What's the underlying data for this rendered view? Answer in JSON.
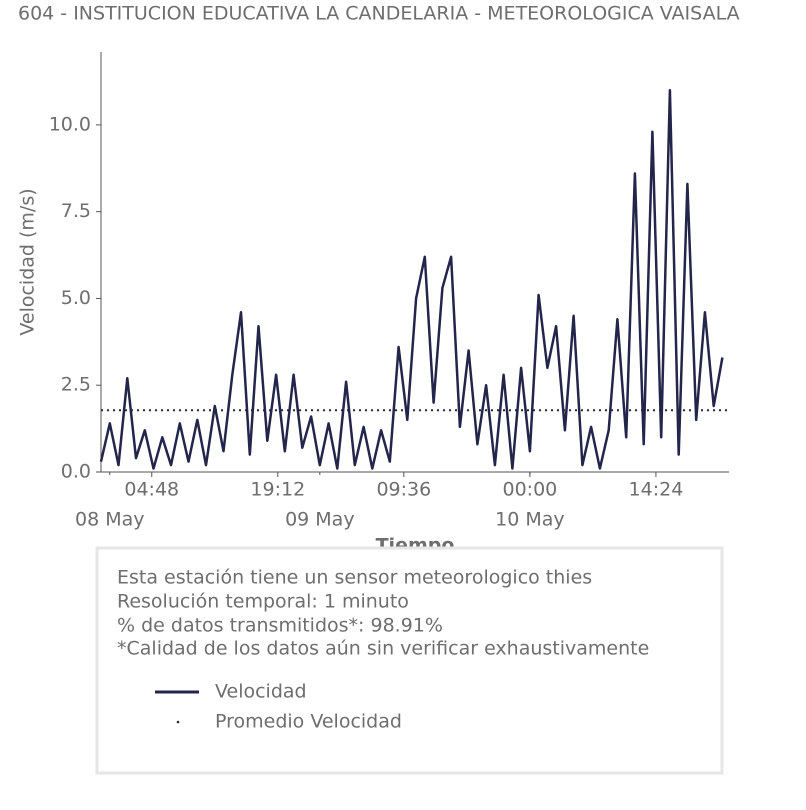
{
  "chart_data": {
    "type": "line",
    "title": "604 - INSTITUCION EDUCATIVA LA CANDELARIA - METEOROLOGICA VAISALA",
    "x_label": "Tiempo",
    "y_label": "Velocidad (m/s)",
    "xlim": [
      "05-07 23:00",
      "05-10 22:45"
    ],
    "ylim": [
      0,
      12.1
    ],
    "yticks": [
      {
        "value": 0,
        "label": "0.0"
      },
      {
        "value": 2.5,
        "label": "2.5"
      },
      {
        "value": 5,
        "label": "5.0"
      },
      {
        "value": 7.5,
        "label": "7.5"
      },
      {
        "value": 10,
        "label": "10.0"
      }
    ],
    "xticks": [
      {
        "value": "05-08 04:48",
        "label": "04:48"
      },
      {
        "value": "05-08 19:12",
        "label": "19:12"
      },
      {
        "value": "05-09 09:36",
        "label": "09:36"
      },
      {
        "value": "05-10 00:00",
        "label": "00:00"
      },
      {
        "value": "05-10 14:24",
        "label": "14:24"
      }
    ],
    "xticks_minor": [
      {
        "value": "05-08 00:00",
        "label": "08 May"
      },
      {
        "value": "05-09 00:00",
        "label": "09 May"
      },
      {
        "value": "05-10 00:00",
        "label": "10 May"
      }
    ],
    "x": [
      "05-07 23:00",
      "05-08 00:00",
      "05-08 01:00",
      "05-08 02:00",
      "05-08 03:00",
      "05-08 04:00",
      "05-08 05:00",
      "05-08 06:00",
      "05-08 07:00",
      "05-08 08:00",
      "05-08 09:00",
      "05-08 10:00",
      "05-08 11:00",
      "05-08 12:00",
      "05-08 13:00",
      "05-08 14:00",
      "05-08 15:00",
      "05-08 16:00",
      "05-08 17:00",
      "05-08 18:00",
      "05-08 19:00",
      "05-08 20:00",
      "05-08 21:00",
      "05-08 22:00",
      "05-08 23:00",
      "05-09 00:00",
      "05-09 01:00",
      "05-09 02:00",
      "05-09 03:00",
      "05-09 04:00",
      "05-09 05:00",
      "05-09 06:00",
      "05-09 07:00",
      "05-09 08:00",
      "05-09 09:00",
      "05-09 10:00",
      "05-09 11:00",
      "05-09 12:00",
      "05-09 13:00",
      "05-09 14:00",
      "05-09 15:00",
      "05-09 16:00",
      "05-09 17:00",
      "05-09 18:00",
      "05-09 19:00",
      "05-09 20:00",
      "05-09 21:00",
      "05-09 22:00",
      "05-09 23:00",
      "05-10 00:00",
      "05-10 01:00",
      "05-10 02:00",
      "05-10 03:00",
      "05-10 04:00",
      "05-10 05:00",
      "05-10 06:00",
      "05-10 07:00",
      "05-10 08:00",
      "05-10 09:00",
      "05-10 10:00",
      "05-10 11:00",
      "05-10 12:00",
      "05-10 13:00",
      "05-10 14:00",
      "05-10 15:00",
      "05-10 16:00",
      "05-10 17:00",
      "05-10 18:00",
      "05-10 19:00",
      "05-10 20:00",
      "05-10 21:00",
      "05-10 22:00"
    ],
    "series": [
      {
        "name": "Velocidad",
        "color": "#23254a",
        "values": [
          0.3,
          1.4,
          0.2,
          2.7,
          0.4,
          1.2,
          0.1,
          1.0,
          0.2,
          1.4,
          0.3,
          1.5,
          0.2,
          1.9,
          0.6,
          2.8,
          4.6,
          0.5,
          4.2,
          0.9,
          2.8,
          0.6,
          2.8,
          0.7,
          1.6,
          0.2,
          1.4,
          0.1,
          2.6,
          0.2,
          1.3,
          0.1,
          1.2,
          0.3,
          3.6,
          1.5,
          5.0,
          6.2,
          2.0,
          5.3,
          6.2,
          1.3,
          3.5,
          0.8,
          2.5,
          0.2,
          2.8,
          0.1,
          3.0,
          0.6,
          5.1,
          3.0,
          4.2,
          1.2,
          4.5,
          0.2,
          1.3,
          0.1,
          1.2,
          4.4,
          1.0,
          8.6,
          0.8,
          9.8,
          1.0,
          11.0,
          0.5,
          8.3,
          1.5,
          4.6,
          1.9,
          3.3
        ]
      },
      {
        "name": "Promedio Velocidad",
        "color": "#23254a",
        "value": 1.78
      }
    ],
    "info": [
      "Esta estación tiene un sensor meteorologico thies",
      "Resolución temporal: 1 minuto",
      "% de datos transmitidos*: 98.91%",
      "*Calidad de los datos aún sin verificar exhaustivamente"
    ]
  }
}
